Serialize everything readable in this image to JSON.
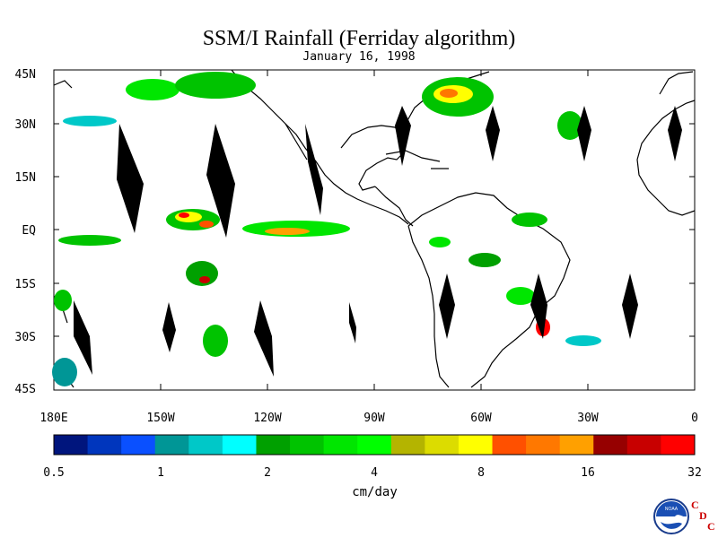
{
  "title": "SSM/I Rainfall (Ferriday algorithm)",
  "subtitle": "January 16, 1998",
  "lat_labels": [
    "45N",
    "30N",
    "15N",
    "EQ",
    "15S",
    "30S",
    "45S"
  ],
  "lon_labels": [
    "180E",
    "150W",
    "120W",
    "90W",
    "60W",
    "30W",
    "0"
  ],
  "colorbar": {
    "unit": "cm/day",
    "tick_labels": [
      "0.5",
      "1",
      "2",
      "4",
      "8",
      "16",
      "32"
    ],
    "colors": [
      "#00157d",
      "#0036bd",
      "#0a50ff",
      "#009696",
      "#00c8c8",
      "#00ffff",
      "#00a000",
      "#00c300",
      "#00e600",
      "#00ff00",
      "#b4b400",
      "#dcdc00",
      "#ffff00",
      "#ff5000",
      "#ff7800",
      "#ffa000",
      "#960000",
      "#c80000",
      "#ff0000"
    ]
  },
  "logo": {
    "org": "NOAA",
    "letters": [
      "C",
      "D",
      "C"
    ]
  },
  "icons": [
    "noaa-logo-icon"
  ]
}
